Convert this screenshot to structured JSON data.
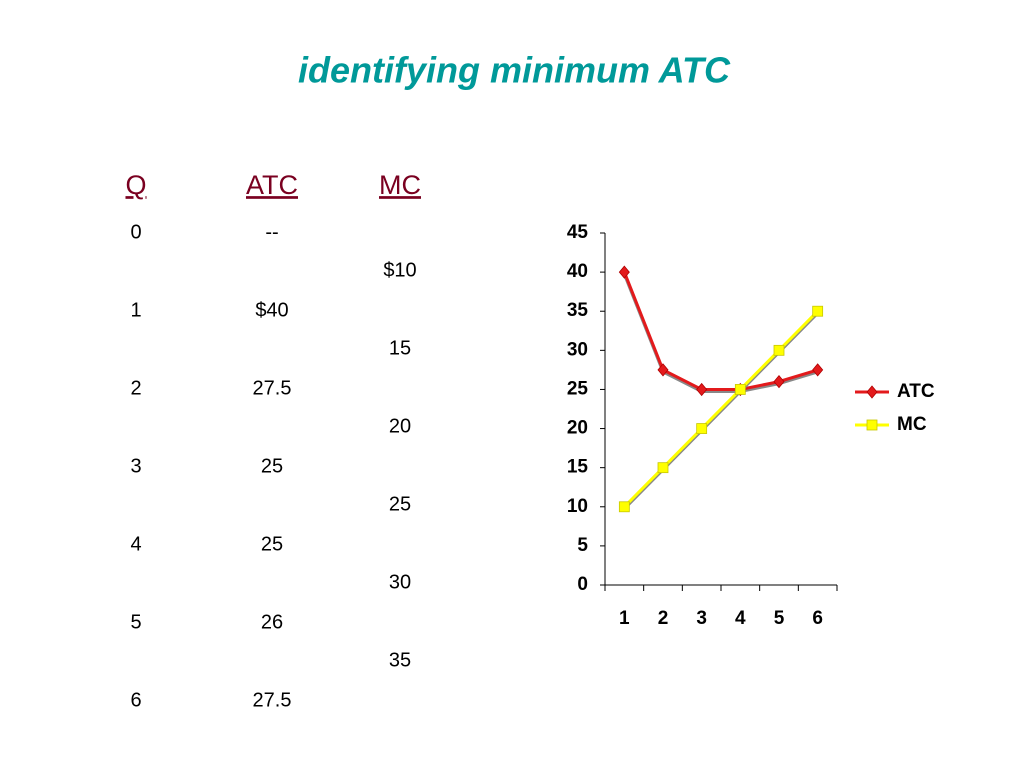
{
  "title": "identifying minimum ATC",
  "table": {
    "headers": [
      "Q",
      "ATC",
      "MC"
    ],
    "q": [
      "0",
      "1",
      "2",
      "3",
      "4",
      "5",
      "6"
    ],
    "atc": [
      "--",
      "$40",
      "27.5",
      "25",
      "25",
      "26",
      "27.5"
    ],
    "mc": [
      "$10",
      "15",
      "20",
      "25",
      "30",
      "35"
    ]
  },
  "chart_data": {
    "type": "line",
    "categories": [
      "1",
      "2",
      "3",
      "4",
      "5",
      "6"
    ],
    "series": [
      {
        "name": "ATC",
        "color": "#e31a1c",
        "marker": "diamond",
        "values": [
          40,
          27.5,
          25,
          25,
          26,
          27.5
        ]
      },
      {
        "name": "MC",
        "color": "#ffff00",
        "marker": "square",
        "values": [
          10,
          15,
          20,
          25,
          30,
          35
        ]
      }
    ],
    "ylim": [
      0,
      45
    ],
    "yticks": [
      0,
      5,
      10,
      15,
      20,
      25,
      30,
      35,
      40,
      45
    ],
    "legend": "right"
  }
}
